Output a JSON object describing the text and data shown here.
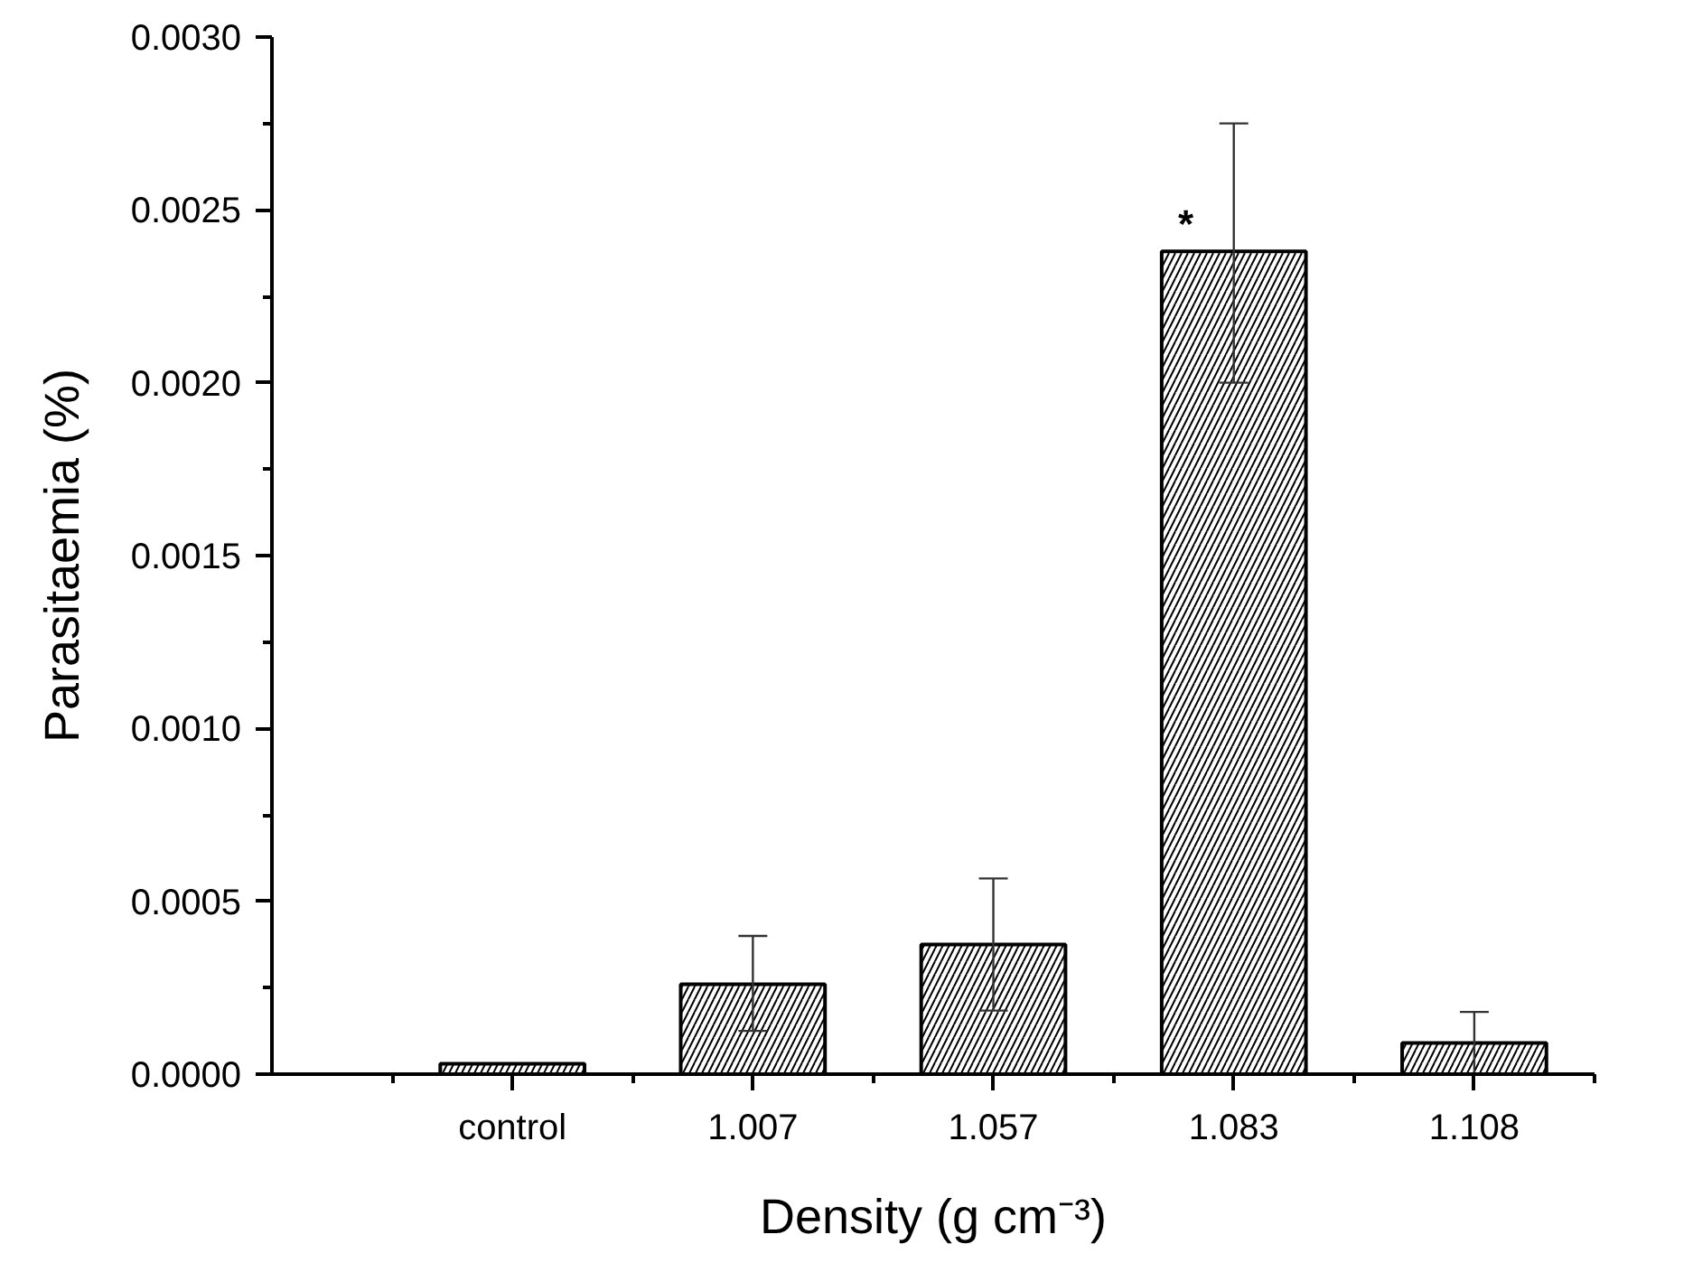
{
  "chart_data": {
    "type": "bar",
    "xlabel": "Density (g cm⁻³)",
    "ylabel": "Parasitaemia (%)",
    "categories": [
      "control",
      "1.007",
      "1.057",
      "1.083",
      "1.108"
    ],
    "values": [
      3e-05,
      0.00026,
      0.000375,
      0.00238,
      9e-05
    ],
    "errors": [
      null,
      [
        0.000125,
        0.0004
      ],
      [
        0.000184,
        0.000566
      ],
      [
        0.002,
        0.00275
      ],
      9e-05
    ],
    "color": "#ffffff",
    "ylim": [
      0,
      0.003
    ],
    "yticks": [
      {
        "value": 0,
        "label": "0.0000"
      },
      {
        "value": 0.0005,
        "label": "0.0005"
      },
      {
        "value": 0.001,
        "label": "0.0010"
      },
      {
        "value": 0.0015,
        "label": "0.0015"
      },
      {
        "value": 0.002,
        "label": "0.0020"
      },
      {
        "value": 0.0025,
        "label": "0.0025"
      },
      {
        "value": 0.003,
        "label": "0.0030"
      }
    ],
    "annotations": [
      {
        "text": "*",
        "x": "1.083",
        "y": 0.00246
      }
    ],
    "grid": false
  }
}
